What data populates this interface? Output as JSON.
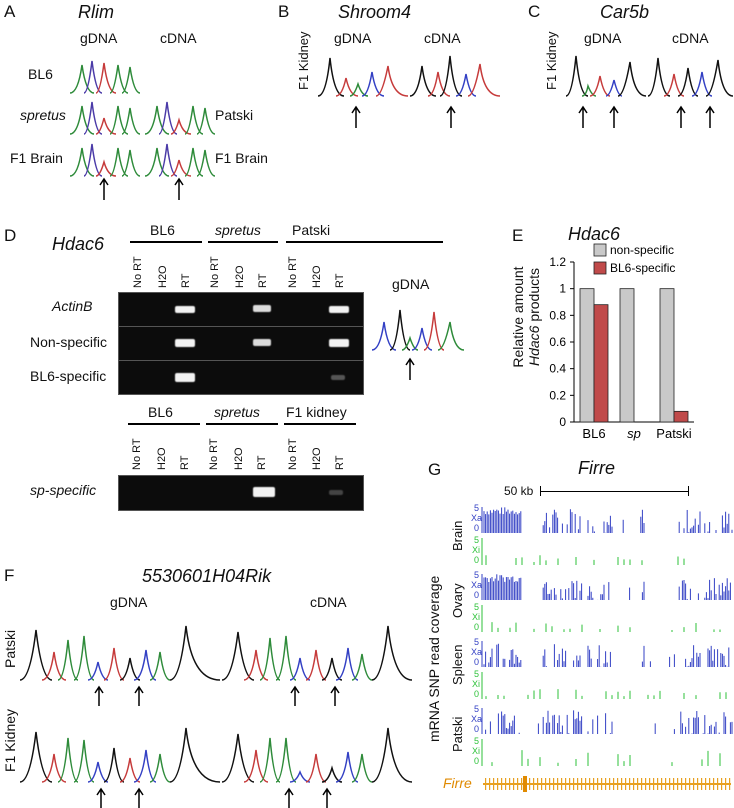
{
  "panels": {
    "A": "A",
    "B": "B",
    "C": "C",
    "D": "D",
    "E": "E",
    "F": "F",
    "G": "G"
  },
  "a": {
    "gene": "Rlim",
    "gdna": "gDNA",
    "cdna": "cDNA",
    "bl6": "BL6",
    "spretus": "spretus",
    "patski": "Patski",
    "f1brain_left": "F1 Brain",
    "f1brain_right": "F1 Brain"
  },
  "b": {
    "gene": "Shroom4",
    "side": "F1 Kidney",
    "gdna": "gDNA",
    "cdna": "cDNA"
  },
  "c": {
    "gene": "Car5b",
    "side": "F1 Kidney",
    "gdna": "gDNA",
    "cdna": "cDNA"
  },
  "d": {
    "gene": "Hdac6",
    "top_groups": [
      "BL6",
      "spretus",
      "Patski"
    ],
    "lanes": [
      "No RT",
      "H2O",
      "RT"
    ],
    "rows": [
      "ActinB",
      "Non-specific",
      "BL6-specific"
    ],
    "gdna": "gDNA",
    "bottom_groups": [
      "BL6",
      "spretus",
      "F1 kidney"
    ],
    "bottom_row": "sp-specific"
  },
  "e": {
    "gene": "Hdac6",
    "ylabel1": "Relative amount",
    "ylabel2": "Hdac6",
    "ylabel3": "products",
    "legend_nonspecific": "non-specific",
    "legend_bl6": "BL6-specific",
    "colors": {
      "nonspecific": "#c9c9c9",
      "bl6": "#c04a4a"
    }
  },
  "f": {
    "gene": "5530601H04Rik",
    "gdna": "gDNA",
    "cdna": "cDNA",
    "row1": "Patski",
    "row2": "F1 Kidney"
  },
  "g": {
    "gene": "Firre",
    "scale": "50 kb",
    "ylabel": "mRNA SNP read coverage",
    "tracks": [
      {
        "name": "Brain"
      },
      {
        "name": "Ovary"
      },
      {
        "name": "Spleen"
      },
      {
        "name": "Patski"
      }
    ],
    "xa": "Xa",
    "xi": "Xi",
    "tick5": "5",
    "tick0": "0",
    "gene_label": "Firre"
  },
  "chart_data": {
    "type": "bar",
    "title": "Hdac6",
    "categories": [
      "BL6",
      "sp",
      "Patski"
    ],
    "series": [
      {
        "name": "non-specific",
        "values": [
          1,
          1,
          1
        ]
      },
      {
        "name": "BL6-specific",
        "values": [
          0.88,
          0,
          0.08
        ]
      }
    ],
    "ylabel": "Relative amount Hdac6 products",
    "ylim": [
      0,
      1.2
    ],
    "yticks": [
      "0",
      "0.2",
      "0.4",
      "0.6",
      "0.8",
      "1",
      "1.2"
    ],
    "legend": "top-right",
    "grid": false
  }
}
